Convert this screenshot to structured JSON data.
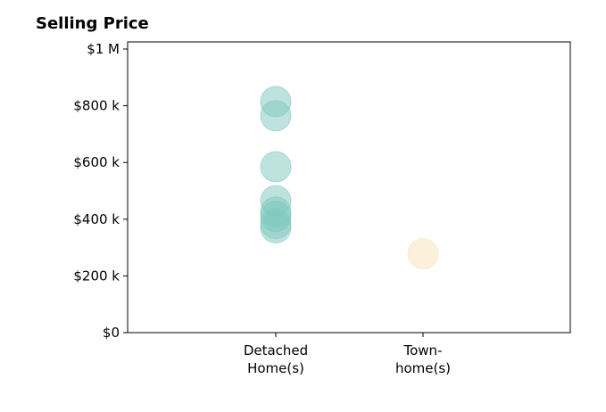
{
  "chart_data": {
    "type": "scatter",
    "title": "Selling Price",
    "xlabel": "",
    "ylabel": "",
    "categories": [
      {
        "label_lines": [
          "Detached",
          "Home(s)"
        ]
      },
      {
        "label_lines": [
          "Town-",
          "home(s)"
        ]
      }
    ],
    "ylim": [
      0,
      1000000
    ],
    "y_ticks": [
      {
        "value": 0,
        "label": "$0"
      },
      {
        "value": 200000,
        "label": "$200 k"
      },
      {
        "value": 400000,
        "label": "$400 k"
      },
      {
        "value": 600000,
        "label": "$600 k"
      },
      {
        "value": 800000,
        "label": "$800 k"
      },
      {
        "value": 1000000,
        "label": "$1 M"
      }
    ],
    "grid": false,
    "series": [
      {
        "category_index": 0,
        "color": "#7ec8be",
        "values": [
          815000,
          765000,
          585000,
          465000,
          425000,
          410000,
          385000,
          370000
        ]
      },
      {
        "category_index": 1,
        "color": "#f8e3b8",
        "values": [
          278000
        ]
      }
    ]
  }
}
